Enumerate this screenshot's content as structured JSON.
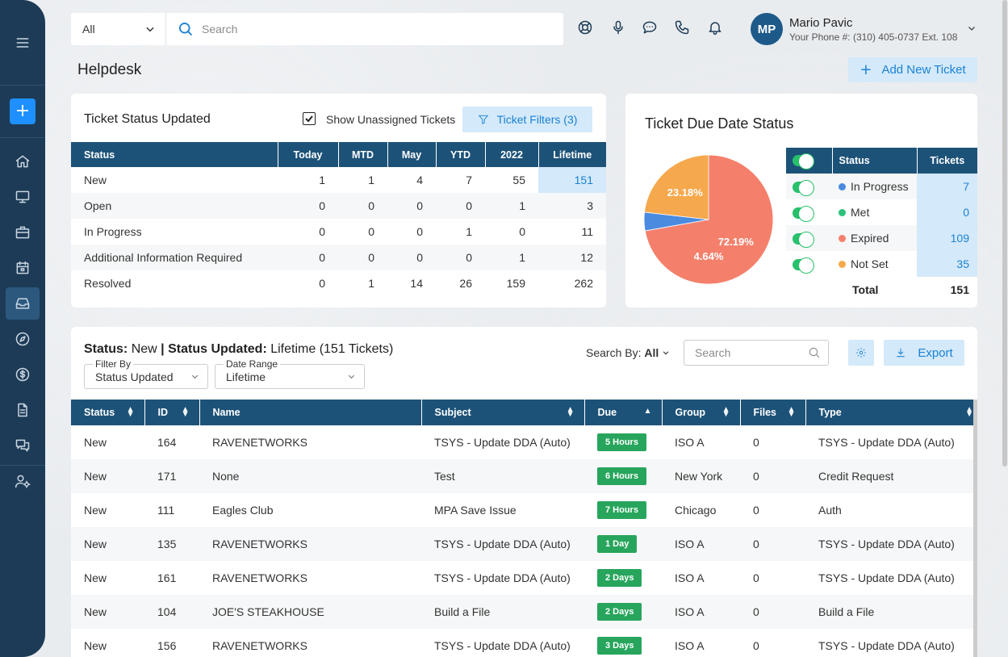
{
  "search": {
    "scope": "All",
    "placeholder": "Search"
  },
  "user": {
    "initials": "MP",
    "name": "Mario Pavic",
    "phone": "Your Phone #: (310) 405-0737 Ext. 108"
  },
  "page": {
    "title": "Helpdesk",
    "add_button": "Add New Ticket"
  },
  "status_card": {
    "title": "Ticket Status Updated",
    "show_unassigned_label": "Show Unassigned Tickets",
    "show_unassigned_checked": true,
    "filters_button": "Ticket Filters (3)",
    "columns": [
      "Status",
      "Today",
      "MTD",
      "May",
      "YTD",
      "2022",
      "Lifetime"
    ],
    "rows": [
      [
        "New",
        "1",
        "1",
        "4",
        "7",
        "55",
        "151"
      ],
      [
        "Open",
        "0",
        "0",
        "0",
        "0",
        "1",
        "3"
      ],
      [
        "In Progress",
        "0",
        "0",
        "0",
        "1",
        "0",
        "11"
      ],
      [
        "Additional Information Required",
        "0",
        "0",
        "0",
        "0",
        "1",
        "12"
      ],
      [
        "Resolved",
        "0",
        "1",
        "14",
        "26",
        "159",
        "262"
      ]
    ]
  },
  "due_card": {
    "title": "Ticket Due Date Status",
    "columns": [
      "Status",
      "Tickets"
    ],
    "rows": [
      {
        "label": "In Progress",
        "value": "7",
        "color": "#4a8be0",
        "enabled": true
      },
      {
        "label": "Met",
        "value": "0",
        "color": "#2ec07a",
        "enabled": true
      },
      {
        "label": "Expired",
        "value": "109",
        "color": "#f4806c",
        "enabled": true
      },
      {
        "label": "Not Set",
        "value": "35",
        "color": "#f6a84c",
        "enabled": true
      }
    ],
    "total_label": "Total",
    "total_value": "151",
    "pie_labels": {
      "expired": "72.19%",
      "not_set": "23.18%",
      "in_progress": "4.64%"
    },
    "chart_data": {
      "type": "pie",
      "categories": [
        "In Progress",
        "Met",
        "Expired",
        "Not Set"
      ],
      "values": [
        7,
        0,
        109,
        35
      ],
      "percent_labels": [
        "4.64%",
        "",
        "72.19%",
        "23.18%"
      ],
      "colors": [
        "#4a8be0",
        "#2ec07a",
        "#f4806c",
        "#f6a84c"
      ]
    }
  },
  "tickets": {
    "heading_status_label": "Status:",
    "heading_status_value": "New",
    "heading_sep": "|",
    "heading_updated_label": "Status Updated:",
    "heading_updated_value": "Lifetime (151 Tickets)",
    "filter_by_label": "Filter By",
    "filter_by_value": "Status Updated",
    "date_range_label": "Date Range",
    "date_range_value": "Lifetime",
    "search_by_label": "Search By:",
    "search_by_value": "All",
    "search_placeholder": "Search",
    "export_label": "Export",
    "columns": [
      "Status",
      "ID",
      "Name",
      "Subject",
      "Due",
      "Group",
      "Files",
      "Type"
    ],
    "rows": [
      [
        "New",
        "164",
        "RAVENETWORKS",
        "TSYS - Update DDA (Auto)",
        "5 Hours",
        "ISO A",
        "0",
        "TSYS - Update DDA (Auto)"
      ],
      [
        "New",
        "171",
        "None",
        "Test",
        "6 Hours",
        "New York",
        "0",
        "Credit Request"
      ],
      [
        "New",
        "111",
        "Eagles Club",
        "MPA Save Issue",
        "7 Hours",
        "Chicago",
        "0",
        "Auth"
      ],
      [
        "New",
        "135",
        "RAVENETWORKS",
        "TSYS - Update DDA (Auto)",
        "1 Day",
        "ISO A",
        "0",
        "TSYS - Update DDA (Auto)"
      ],
      [
        "New",
        "161",
        "RAVENETWORKS",
        "TSYS - Update DDA (Auto)",
        "2 Days",
        "ISO A",
        "0",
        "TSYS - Update DDA (Auto)"
      ],
      [
        "New",
        "104",
        "JOE'S STEAKHOUSE",
        "Build a File",
        "2 Days",
        "ISO A",
        "0",
        "Build a File"
      ],
      [
        "New",
        "156",
        "RAVENETWORKS",
        "TSYS - Update DDA (Auto)",
        "3 Days",
        "ISO A",
        "0",
        "TSYS - Update DDA (Auto)"
      ]
    ]
  },
  "sidebar": {
    "items": [
      "menu-icon",
      "add-icon",
      "home-icon",
      "monitor-icon",
      "briefcase-icon",
      "calendar-icon",
      "inbox-icon",
      "compass-icon",
      "dollar-icon",
      "document-icon",
      "chat-icon",
      "user-settings-icon"
    ],
    "active": "inbox-icon"
  }
}
